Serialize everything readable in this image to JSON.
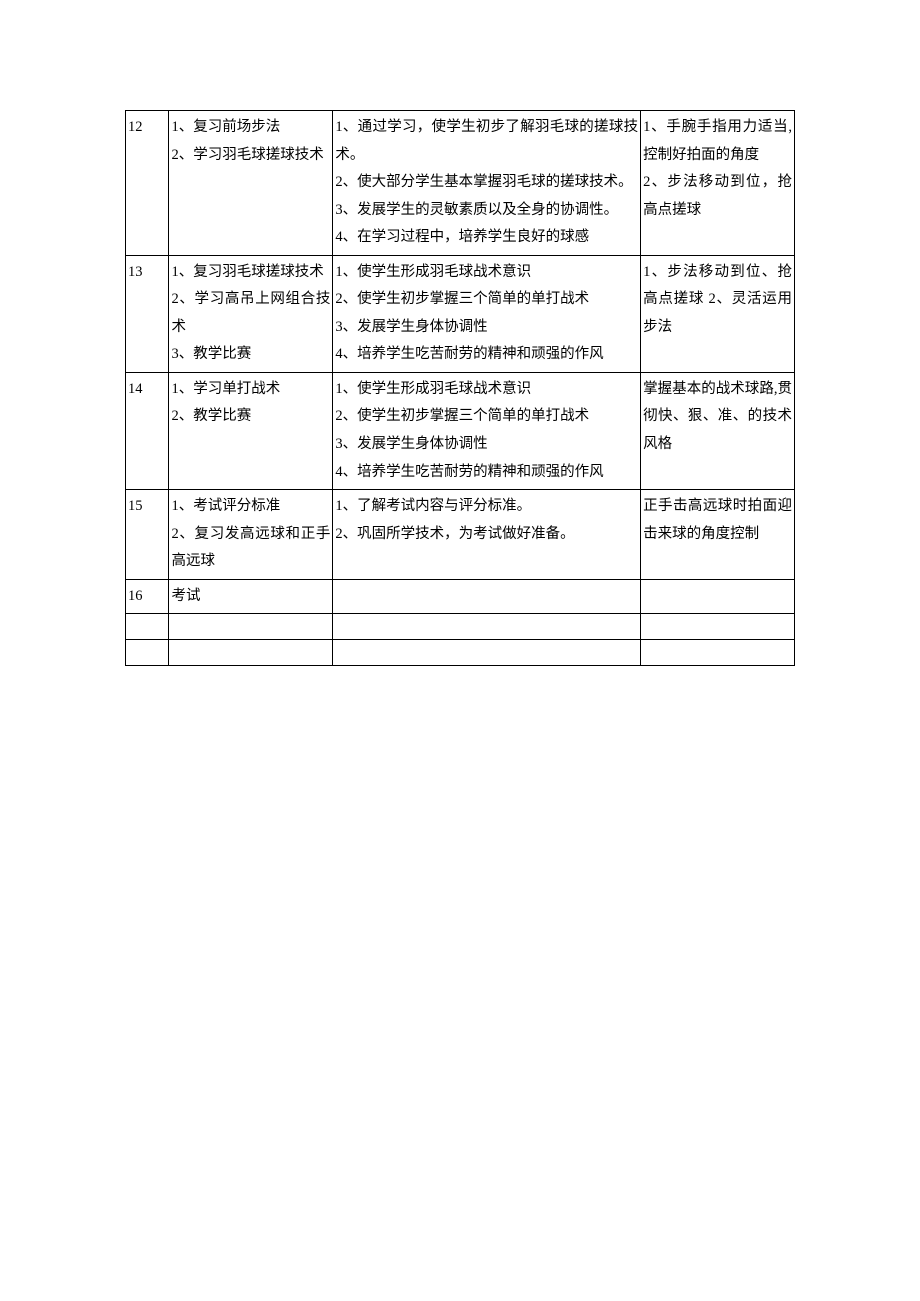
{
  "table": {
    "column_widths": [
      "6.5%",
      "24.5%",
      "46%",
      "23%"
    ],
    "border_color": "#000000",
    "background_color": "#ffffff",
    "text_color": "#000000",
    "font_family": "SimSun",
    "font_size": 14.5,
    "line_height": 1.9,
    "rows": [
      {
        "num": "12",
        "content": [
          "1、复习前场步法",
          "2、学习羽毛球搓球技术"
        ],
        "goals": [
          "1、通过学习，使学生初步了解羽毛球的搓球技术。",
          "2、使大部分学生基本掌握羽毛球的搓球技术。",
          "3、发展学生的灵敏素质以及全身的协调性。",
          "4、在学习过程中，培养学生良好的球感"
        ],
        "key": [
          "1、手腕手指用力适当,控制好拍面的角度",
          "2、步法移动到位，抢高点搓球"
        ]
      },
      {
        "num": "13",
        "content": [
          "1、复习羽毛球搓球技术",
          "2、学习高吊上网组合技术",
          "3、教学比赛"
        ],
        "goals": [
          "1、使学生形成羽毛球战术意识",
          "2、使学生初步掌握三个简单的单打战术",
          "3、发展学生身体协调性",
          "4、培养学生吃苦耐劳的精神和顽强的作风"
        ],
        "key": [
          "1、步法移动到位、抢高点搓球 2、灵活运用步法"
        ]
      },
      {
        "num": "14",
        "content": [
          "1、学习单打战术",
          "2、教学比赛"
        ],
        "goals": [
          "1、使学生形成羽毛球战术意识",
          "2、使学生初步掌握三个简单的单打战术",
          "3、发展学生身体协调性",
          "4、培养学生吃苦耐劳的精神和顽强的作风"
        ],
        "key": [
          "掌握基本的战术球路,贯彻快、狠、准、的技术风格"
        ]
      },
      {
        "num": "15",
        "content": [
          "1、考试评分标准",
          "2、复习发高远球和正手高远球"
        ],
        "goals": [
          "1、了解考试内容与评分标准。",
          "2、巩固所学技术，为考试做好准备。"
        ],
        "key": [
          "正手击高远球时拍面迎击来球的角度控制"
        ]
      },
      {
        "num": "16",
        "content": [
          "考试"
        ],
        "goals": [],
        "key": []
      }
    ]
  }
}
